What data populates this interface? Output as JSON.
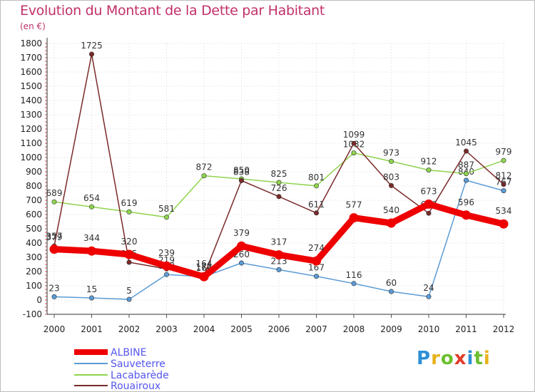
{
  "title": "Evolution du Montant de la Dette par Habitant",
  "unit": "(en €)",
  "logo": {
    "text": "Proxiti",
    "letter_colors": [
      "#2e8fd6",
      "#e8b21c",
      "#6bbf2e",
      "#e23b2a",
      "#2e8fd6",
      "#6bbf2e",
      "#e8b21c"
    ]
  },
  "chart_data": {
    "type": "line",
    "title": "Evolution du Montant de la Dette par Habitant",
    "ylabel": "(en €)",
    "xlabel": "",
    "ylim": [
      -100,
      1800
    ],
    "ystep": 100,
    "grid": true,
    "legend_position": "bottom-left",
    "x": [
      "2000",
      "2001",
      "2002",
      "2003",
      "2004",
      "2005",
      "2006",
      "2007",
      "2008",
      "2009",
      "2010",
      "2011",
      "2012"
    ],
    "series": [
      {
        "name": "ALBINE",
        "color": "#ee0000",
        "values": [
          357,
          344,
          320,
          239,
          164,
          379,
          317,
          274,
          577,
          540,
          673,
          596,
          534
        ]
      },
      {
        "name": "Sauveterre",
        "color": "#5b9bd5",
        "values": [
          23,
          15,
          5,
          179,
          164,
          260,
          213,
          167,
          116,
          60,
          24,
          840,
          767
        ]
      },
      {
        "name": "Lacabarède",
        "color": "#8fd44e",
        "values": [
          689,
          654,
          619,
          581,
          872,
          850,
          825,
          801,
          1032,
          973,
          912,
          887,
          979
        ]
      },
      {
        "name": "Rouairoux",
        "color": "#7a2a2a",
        "values": [
          379,
          1725,
          265,
          219,
          172,
          838,
          726,
          611,
          1099,
          803,
          609,
          1045,
          812
        ]
      }
    ]
  }
}
